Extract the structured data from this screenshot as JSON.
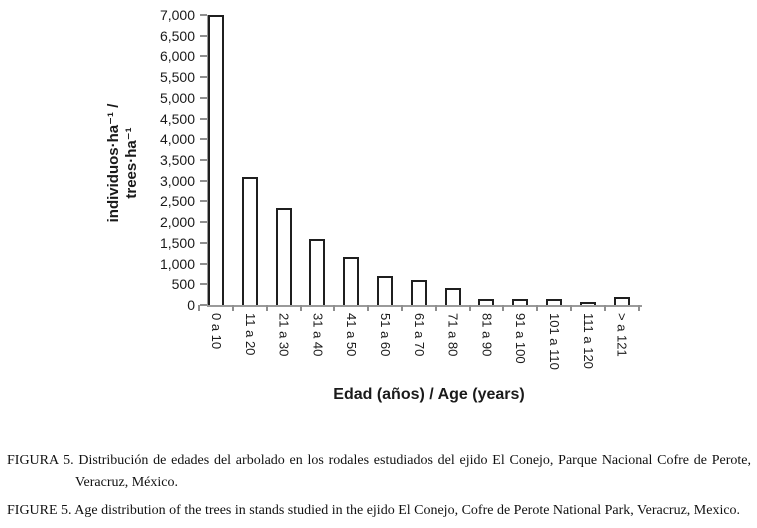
{
  "chart_data": {
    "type": "bar",
    "title": "",
    "categories": [
      "0 a 10",
      "11 a 20",
      "21 a 30",
      "31 a 40",
      "41 a 50",
      "51 a 60",
      "61 a 70",
      "71 a 80",
      "81 a 90",
      "91 a 100",
      "101 a 110",
      "111 a 120",
      "> a 121"
    ],
    "values": [
      7000,
      3100,
      2350,
      1600,
      1150,
      700,
      600,
      400,
      150,
      150,
      150,
      50,
      200
    ],
    "xlabel": "Edad (años) / Age (years)",
    "ylabel_line1": "individuos·ha⁻¹ /",
    "ylabel_line2": "trees·ha⁻¹",
    "ylim": [
      0,
      7000
    ],
    "ytick_step": 500,
    "ytick_labels": [
      "0",
      "500",
      "1,000",
      "1,500",
      "2,000",
      "2,500",
      "3,000",
      "3,500",
      "4,000",
      "4,500",
      "5,000",
      "5,500",
      "6,000",
      "6,500",
      "7,000"
    ],
    "grid": false,
    "legend_position": "none",
    "bar_fill": "#ffffff",
    "bar_border": "#1f1f1f",
    "axis_color": "#9a9a9a"
  },
  "captions": {
    "es": {
      "label": "FIGURA 5.",
      "text": "Distribución de edades del arbolado en los rodales estudiados del ejido El Conejo, Parque Nacional Cofre de Perote, Veracruz, México."
    },
    "en": {
      "label": "FIGURE 5.",
      "text": "Age distribution of the trees in stands studied in the ejido El Conejo, Cofre de Perote National Park, Veracruz, Mexico."
    }
  }
}
